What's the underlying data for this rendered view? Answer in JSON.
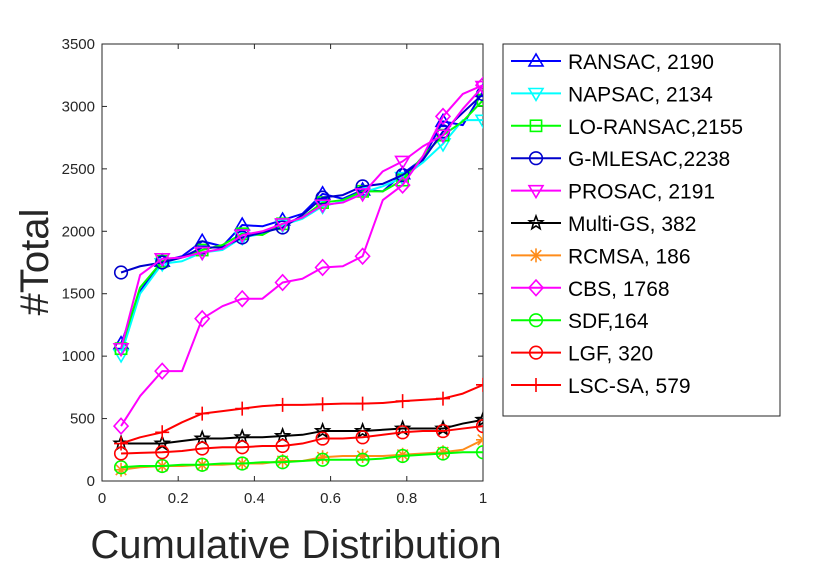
{
  "chart_data": {
    "type": "line",
    "title": "",
    "xlabel": "Cumulative Distribution",
    "ylabel": "#Total",
    "xlim": [
      0,
      1
    ],
    "ylim": [
      0,
      3500
    ],
    "xticks": [
      "0",
      "0.2",
      "0.4",
      "0.6",
      "0.8",
      "1"
    ],
    "xtick_values": [
      0,
      0.2,
      0.4,
      0.6,
      0.8,
      1
    ],
    "yticks": [
      "0",
      "500",
      "1000",
      "1500",
      "2000",
      "2500",
      "3000",
      "3500"
    ],
    "ytick_values": [
      0,
      500,
      1000,
      1500,
      2000,
      2500,
      3000,
      3500
    ],
    "grid": false,
    "legend_position": "outside-right",
    "x": [
      0.05,
      0.1,
      0.158,
      0.21,
      0.263,
      0.316,
      0.368,
      0.421,
      0.474,
      0.526,
      0.579,
      0.632,
      0.684,
      0.737,
      0.789,
      0.842,
      0.895,
      0.947,
      1.0
    ],
    "series": [
      {
        "name": "RANSAC, 2190",
        "color": "#0000ff",
        "marker": "triangle-up",
        "values": [
          1100,
          1520,
          1760,
          1800,
          1920,
          1880,
          2050,
          2040,
          2090,
          2140,
          2300,
          2260,
          2330,
          2320,
          2460,
          2580,
          2880,
          2850,
          3120
        ]
      },
      {
        "name": "NAPSAC, 2134",
        "color": "#00ffff",
        "marker": "triangle-down",
        "values": [
          1010,
          1500,
          1740,
          1760,
          1830,
          1850,
          1950,
          1980,
          2050,
          2100,
          2200,
          2240,
          2310,
          2360,
          2430,
          2550,
          2700,
          2890,
          2890
        ]
      },
      {
        "name": "LO-RANSAC,2155",
        "color": "#00ff00",
        "marker": "square",
        "values": [
          1060,
          1550,
          1760,
          1790,
          1850,
          1890,
          1980,
          1970,
          2060,
          2110,
          2230,
          2250,
          2320,
          2320,
          2410,
          2600,
          2770,
          2880,
          3050
        ]
      },
      {
        "name": "G-MLESAC,2238",
        "color": "#0000cc",
        "marker": "circle",
        "values": [
          1670,
          1720,
          1750,
          1790,
          1870,
          1870,
          1950,
          1990,
          2030,
          2130,
          2270,
          2290,
          2360,
          2380,
          2450,
          2570,
          2800,
          2950,
          3100
        ]
      },
      {
        "name": "PROSAC, 2191",
        "color": "#ff00ff",
        "marker": "triangle-down",
        "values": [
          1060,
          1650,
          1780,
          1790,
          1830,
          1860,
          1970,
          2000,
          2060,
          2110,
          2210,
          2230,
          2300,
          2480,
          2560,
          2680,
          2770,
          2980,
          3160
        ]
      },
      {
        "name": "Multi-GS, 382",
        "color": "#000000",
        "marker": "star",
        "values": [
          300,
          300,
          300,
          320,
          340,
          340,
          350,
          350,
          360,
          370,
          400,
          400,
          400,
          410,
          420,
          420,
          420,
          460,
          490
        ]
      },
      {
        "name": "RCMSA, 186",
        "color": "#ff8c1a",
        "marker": "asterisk",
        "values": [
          90,
          110,
          120,
          120,
          130,
          130,
          140,
          140,
          160,
          160,
          190,
          200,
          200,
          200,
          210,
          220,
          230,
          250,
          330
        ]
      },
      {
        "name": "CBS, 1768",
        "color": "#ff00ff",
        "marker": "diamond",
        "values": [
          440,
          680,
          880,
          880,
          1300,
          1400,
          1460,
          1460,
          1590,
          1620,
          1710,
          1720,
          1800,
          2250,
          2370,
          2600,
          2920,
          3100,
          3170
        ]
      },
      {
        "name": "SDF,164",
        "color": "#00ff00",
        "marker": "circle",
        "values": [
          110,
          120,
          120,
          130,
          130,
          140,
          140,
          150,
          150,
          160,
          170,
          170,
          170,
          180,
          200,
          210,
          220,
          230,
          230
        ]
      },
      {
        "name": "LGF, 320",
        "color": "#ff0000",
        "marker": "circle",
        "values": [
          220,
          225,
          230,
          240,
          260,
          270,
          270,
          280,
          280,
          300,
          340,
          340,
          350,
          370,
          390,
          400,
          400,
          420,
          440
        ]
      },
      {
        "name": "LSC-SA, 579",
        "color": "#ff0000",
        "marker": "plus",
        "values": [
          300,
          350,
          390,
          470,
          540,
          560,
          580,
          600,
          610,
          610,
          615,
          620,
          620,
          625,
          640,
          650,
          660,
          700,
          770
        ]
      }
    ]
  }
}
